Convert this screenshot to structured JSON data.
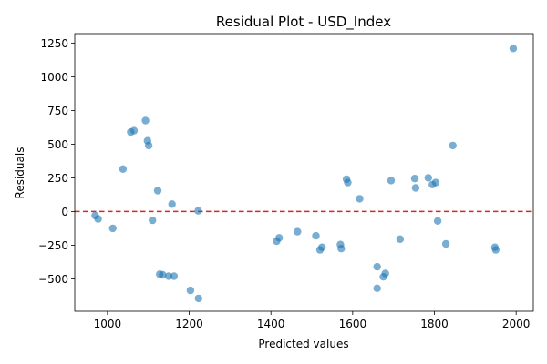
{
  "chart_data": {
    "type": "scatter",
    "title": "Residual Plot - USD_Index",
    "xlabel": "Predicted values",
    "ylabel": "Residuals",
    "xlim": [
      920,
      2042
    ],
    "ylim": [
      -740,
      1320
    ],
    "xticks": [
      1000,
      1200,
      1400,
      1600,
      1800,
      2000
    ],
    "yticks": [
      -500,
      -250,
      0,
      250,
      500,
      750,
      1000,
      1250
    ],
    "reference_line": {
      "y": 0,
      "color": "#d62728",
      "style": "dashed"
    },
    "point_color": "#1f77b4",
    "points": [
      {
        "x": 970,
        "y": -30
      },
      {
        "x": 977,
        "y": -55
      },
      {
        "x": 1013,
        "y": -125
      },
      {
        "x": 1038,
        "y": 315
      },
      {
        "x": 1057,
        "y": 590
      },
      {
        "x": 1065,
        "y": 600
      },
      {
        "x": 1093,
        "y": 675
      },
      {
        "x": 1098,
        "y": 525
      },
      {
        "x": 1101,
        "y": 490
      },
      {
        "x": 1110,
        "y": -65
      },
      {
        "x": 1123,
        "y": 155
      },
      {
        "x": 1128,
        "y": -465
      },
      {
        "x": 1135,
        "y": -470
      },
      {
        "x": 1150,
        "y": -480
      },
      {
        "x": 1158,
        "y": 55
      },
      {
        "x": 1163,
        "y": -480
      },
      {
        "x": 1203,
        "y": -585
      },
      {
        "x": 1222,
        "y": 5
      },
      {
        "x": 1223,
        "y": -645
      },
      {
        "x": 1414,
        "y": -220
      },
      {
        "x": 1420,
        "y": -195
      },
      {
        "x": 1465,
        "y": -150
      },
      {
        "x": 1510,
        "y": -180
      },
      {
        "x": 1520,
        "y": -285
      },
      {
        "x": 1525,
        "y": -265
      },
      {
        "x": 1570,
        "y": -245
      },
      {
        "x": 1572,
        "y": -275
      },
      {
        "x": 1585,
        "y": 240
      },
      {
        "x": 1588,
        "y": 215
      },
      {
        "x": 1617,
        "y": 95
      },
      {
        "x": 1660,
        "y": -410
      },
      {
        "x": 1660,
        "y": -570
      },
      {
        "x": 1675,
        "y": -485
      },
      {
        "x": 1680,
        "y": -460
      },
      {
        "x": 1694,
        "y": 230
      },
      {
        "x": 1716,
        "y": -205
      },
      {
        "x": 1752,
        "y": 245
      },
      {
        "x": 1754,
        "y": 175
      },
      {
        "x": 1785,
        "y": 250
      },
      {
        "x": 1795,
        "y": 200
      },
      {
        "x": 1803,
        "y": 215
      },
      {
        "x": 1808,
        "y": -70
      },
      {
        "x": 1828,
        "y": -240
      },
      {
        "x": 1845,
        "y": 490
      },
      {
        "x": 1948,
        "y": -265
      },
      {
        "x": 1950,
        "y": -285
      },
      {
        "x": 1993,
        "y": 1210
      }
    ]
  }
}
